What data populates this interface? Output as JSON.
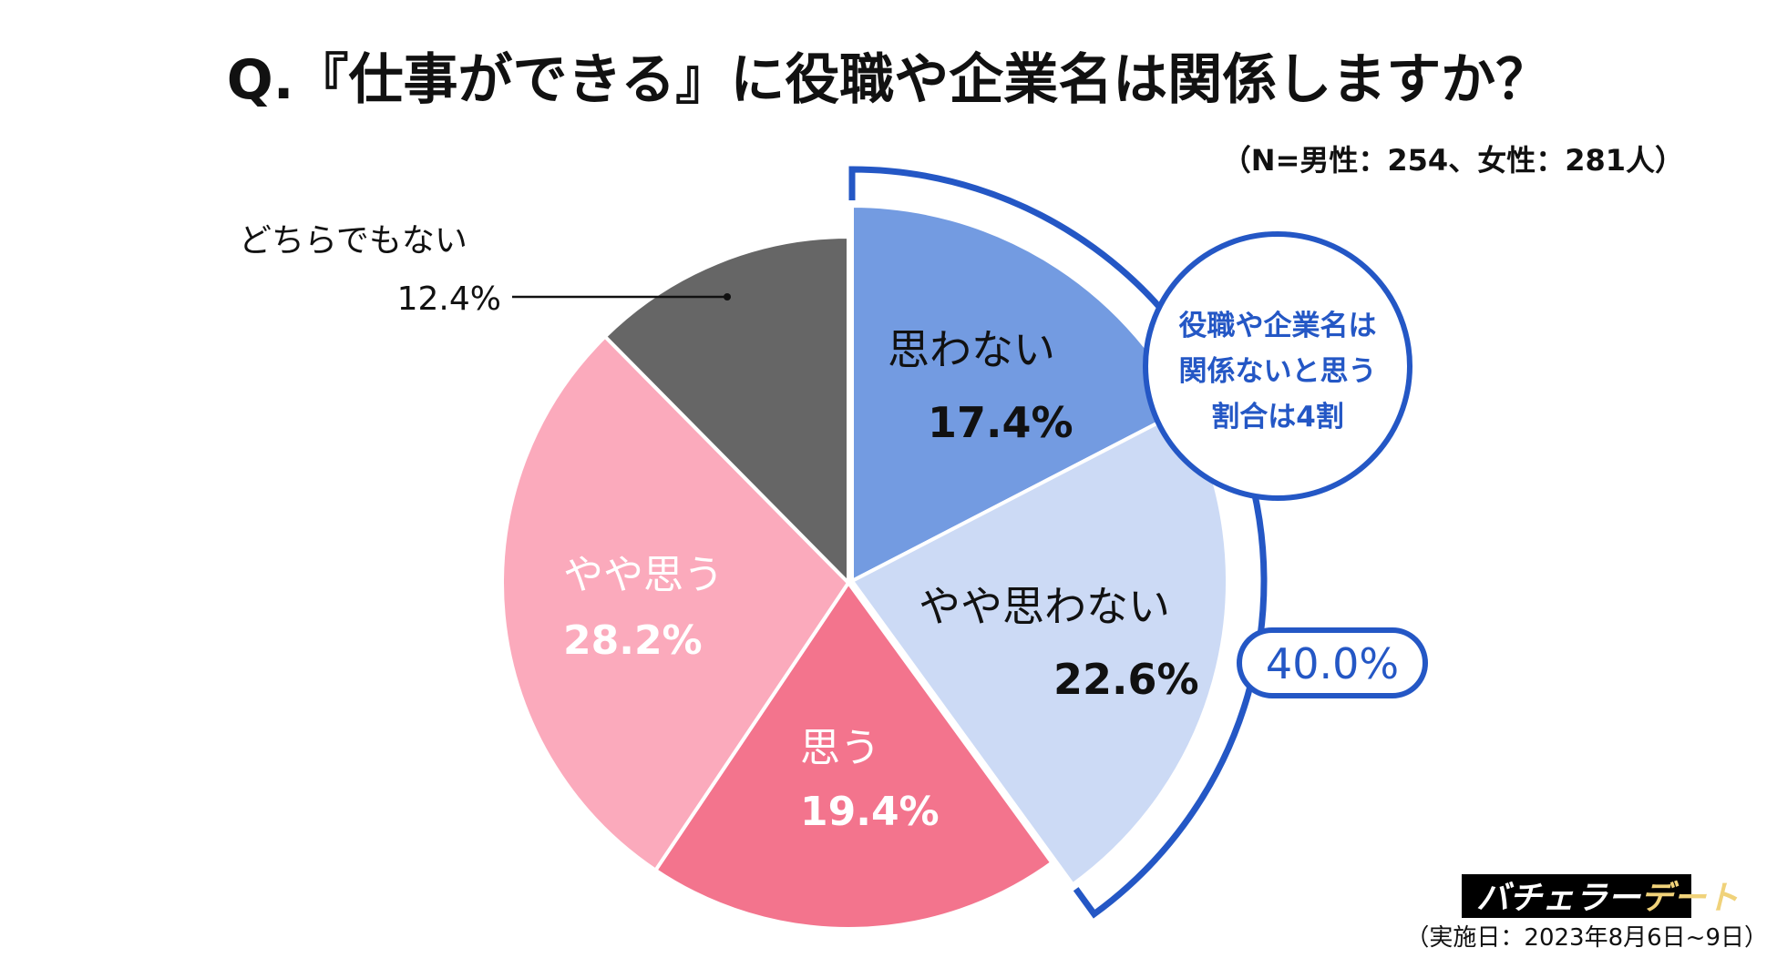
{
  "title": "Q.『仕事ができる』に役職や企業名は関係しますか？",
  "sample_note": "（N=男性：254、女性：281人）",
  "survey_date": "（実施日：2023年8月6日~9日）",
  "logo": {
    "text_white": "バチェラー",
    "text_gold": "デート"
  },
  "callout": {
    "lines": [
      "役職や企業名は",
      "関係ないと思う",
      "割合は4割"
    ],
    "total_label": "40.0%"
  },
  "chart_data": {
    "type": "pie",
    "start": "12 o'clock",
    "direction": "clockwise",
    "exploded": [
      "思わない",
      "やや思わない"
    ],
    "slices": [
      {
        "label": "思わない",
        "value": 17.4,
        "value_label": "17.4%",
        "color": "#739BE1"
      },
      {
        "label": "やや思わない",
        "value": 22.6,
        "value_label": "22.6%",
        "color": "#CCDAF5"
      },
      {
        "label": "思う",
        "value": 19.4,
        "value_label": "19.4%",
        "color": "#F3748D"
      },
      {
        "label": "やや思う",
        "value": 28.2,
        "value_label": "28.2%",
        "color": "#FBAABC"
      },
      {
        "label": "どちらでもない",
        "value": 12.4,
        "value_label": "12.4%",
        "color": "#666666"
      }
    ],
    "bracket_total": 40.0,
    "accent_color": "#2457C5"
  }
}
